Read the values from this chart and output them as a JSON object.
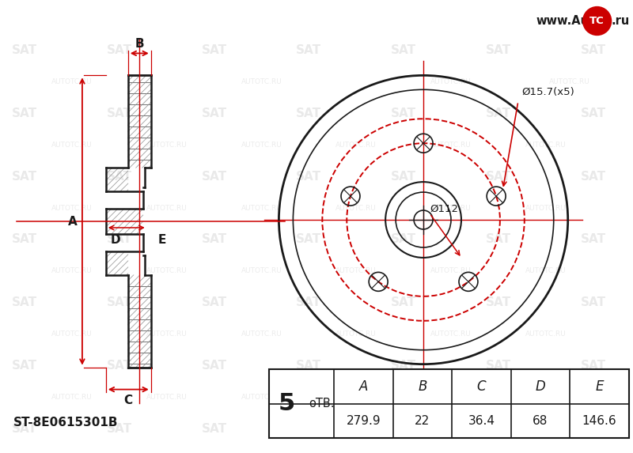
{
  "bg_color": "#ffffff",
  "line_color": "#1a1a1a",
  "red_color": "#cc0000",
  "watermark_color": "#c8c8c8",
  "table_headers": [
    "A",
    "B",
    "C",
    "D",
    "E"
  ],
  "table_values": [
    "279.9",
    "22",
    "36.4",
    "68",
    "146.6"
  ],
  "holes_label": "Ø15.7(x5)",
  "center_label": "Ø112",
  "part_number": "ST-8E0615301B",
  "bolt_count": "5",
  "bolt_label": "оТВ.",
  "dim_A": "A",
  "dim_B": "B",
  "dim_C": "C",
  "dim_D": "D",
  "dim_E": "E"
}
